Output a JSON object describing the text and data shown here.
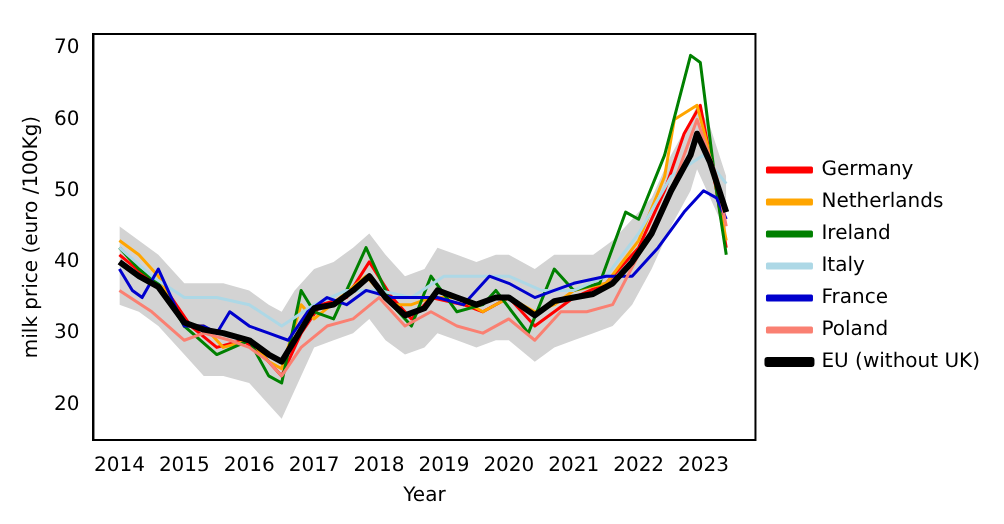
{
  "chart_data": {
    "type": "line",
    "xlabel": "Year",
    "ylabel": "milk price (euro /100Kg)",
    "xlim": [
      2013.6,
      2023.8
    ],
    "ylim": [
      15,
      72
    ],
    "xticks": [
      2014,
      2015,
      2016,
      2017,
      2018,
      2019,
      2020,
      2021,
      2022,
      2023
    ],
    "yticks": [
      20,
      30,
      40,
      50,
      60,
      70
    ],
    "grid": false,
    "legend": "right",
    "marker": "none",
    "line_style": "solid",
    "series": [
      {
        "name": "Germany",
        "color": "#ff0000",
        "x": [
          2014,
          2014.4,
          2014.8,
          2015.1,
          2015.5,
          2015.9,
          2016.2,
          2016.5,
          2016.8,
          2017.1,
          2017.5,
          2017.85,
          2018.2,
          2018.5,
          2018.8,
          2019.3,
          2019.6,
          2020,
          2020.4,
          2020.7,
          2021,
          2021.5,
          2022,
          2022.4,
          2022.7,
          2022.95,
          2023.2,
          2023.35
        ],
        "values": [
          41,
          38,
          35,
          31,
          28,
          29,
          27,
          24,
          30,
          34,
          35,
          40,
          35,
          32,
          35,
          34,
          33,
          35,
          31,
          33,
          35,
          37,
          42,
          50,
          58,
          62,
          50,
          42
        ]
      },
      {
        "name": "Netherlands",
        "color": "#ffa500",
        "x": [
          2014,
          2014.3,
          2014.6,
          2015,
          2015.3,
          2015.6,
          2016,
          2016.3,
          2016.5,
          2016.8,
          2017,
          2017.4,
          2017.8,
          2018.2,
          2018.5,
          2018.8,
          2019.2,
          2019.6,
          2020,
          2020.4,
          2020.7,
          2021,
          2021.5,
          2022,
          2022.4,
          2022.55,
          2022.9,
          2023.1,
          2023.35
        ],
        "values": [
          43,
          41,
          38,
          31,
          31,
          28,
          29,
          26,
          25,
          34,
          32,
          35,
          38,
          34,
          34,
          35,
          35,
          33,
          35,
          33,
          34,
          36,
          37,
          43,
          52,
          60,
          62,
          55,
          43
        ]
      },
      {
        "name": "Ireland",
        "color": "#008000",
        "x": [
          2014,
          2014.3,
          2014.6,
          2015,
          2015.5,
          2016,
          2016.3,
          2016.5,
          2016.8,
          2017,
          2017.3,
          2017.8,
          2018.2,
          2018.5,
          2018.8,
          2019.2,
          2019.6,
          2019.8,
          2020.3,
          2020.7,
          2021,
          2021.4,
          2021.8,
          2022,
          2022.4,
          2022.6,
          2022.8,
          2022.95,
          2023.2,
          2023.35
        ],
        "values": [
          42,
          39,
          37,
          31,
          27,
          29,
          24,
          23,
          36,
          33,
          32,
          42,
          34,
          31,
          38,
          33,
          34,
          36,
          30,
          39,
          36,
          37,
          47,
          46,
          55,
          62,
          69,
          68,
          50,
          41
        ]
      },
      {
        "name": "Italy",
        "color": "#add8e6",
        "x": [
          2014,
          2014.5,
          2015,
          2015.5,
          2016,
          2016.5,
          2017,
          2017.5,
          2018,
          2018.5,
          2019,
          2019.5,
          2020,
          2020.5,
          2021,
          2021.5,
          2022,
          2022.5,
          2023,
          2023.35
        ],
        "values": [
          42,
          38,
          35,
          35,
          34,
          31,
          34,
          36,
          36,
          35,
          38,
          38,
          38,
          36,
          36,
          38,
          44,
          52,
          55,
          51
        ]
      },
      {
        "name": "France",
        "color": "#0000cd",
        "x": [
          2014,
          2014.2,
          2014.35,
          2014.6,
          2014.8,
          2015,
          2015.3,
          2015.5,
          2015.7,
          2016,
          2016.3,
          2016.6,
          2016.9,
          2017.2,
          2017.5,
          2017.8,
          2018.2,
          2018.6,
          2018.9,
          2019.3,
          2019.7,
          2020,
          2020.4,
          2020.7,
          2021,
          2021.5,
          2021.9,
          2022.3,
          2022.7,
          2023,
          2023.2,
          2023.35
        ],
        "values": [
          39,
          36,
          35,
          39,
          35,
          31,
          31,
          30,
          33,
          31,
          30,
          29,
          33,
          35,
          34,
          36,
          35,
          35,
          35,
          34,
          38,
          37,
          35,
          36,
          37,
          38,
          38,
          42,
          47,
          50,
          49,
          46
        ]
      },
      {
        "name": "Poland",
        "color": "#fa8072",
        "x": [
          2014,
          2014.5,
          2015,
          2015.3,
          2015.7,
          2016,
          2016.3,
          2016.5,
          2016.8,
          2017.2,
          2017.6,
          2018,
          2018.4,
          2018.8,
          2019.2,
          2019.6,
          2020,
          2020.4,
          2020.8,
          2021.2,
          2021.6,
          2022,
          2022.5,
          2022.9,
          2023.2,
          2023.35
        ],
        "values": [
          36,
          33,
          29,
          30,
          29,
          28,
          26,
          24,
          28,
          31,
          32,
          35,
          31,
          33,
          31,
          30,
          32,
          29,
          33,
          33,
          34,
          41,
          50,
          60,
          52,
          45
        ]
      },
      {
        "name": "EU (without UK)",
        "color": "#000000",
        "x": [
          2014,
          2014.3,
          2014.6,
          2015,
          2015.3,
          2015.6,
          2016,
          2016.3,
          2016.5,
          2016.7,
          2017,
          2017.3,
          2017.6,
          2017.85,
          2018.1,
          2018.4,
          2018.7,
          2018.9,
          2019.2,
          2019.5,
          2019.8,
          2020,
          2020.4,
          2020.7,
          2021,
          2021.3,
          2021.6,
          2021.9,
          2022.2,
          2022.5,
          2022.8,
          2022.9,
          2023.1,
          2023.35
        ],
        "values": [
          40,
          38,
          36.5,
          31.5,
          30.5,
          30,
          29,
          27,
          26,
          29,
          33.5,
          34,
          36,
          38,
          35,
          32.5,
          33.5,
          36,
          35,
          34,
          35,
          35,
          32.5,
          34.5,
          35,
          35.5,
          37,
          40,
          44,
          50,
          55,
          58,
          54,
          47
        ],
        "lower": [
          34,
          33,
          31,
          27,
          24,
          24,
          23,
          20,
          18,
          22,
          28,
          29,
          30,
          32,
          29,
          27,
          28,
          30,
          29,
          28,
          29,
          29,
          26,
          28,
          29,
          30,
          31,
          34,
          39,
          45,
          50,
          53,
          49,
          44
        ],
        "upper": [
          45,
          43,
          41,
          37,
          37,
          37,
          36,
          34,
          33,
          36,
          39,
          40,
          42,
          44,
          41,
          38,
          39,
          42,
          41,
          40,
          41,
          41,
          39,
          41,
          41,
          41,
          43,
          46,
          49,
          55,
          60,
          62,
          59,
          52
        ]
      }
    ]
  }
}
